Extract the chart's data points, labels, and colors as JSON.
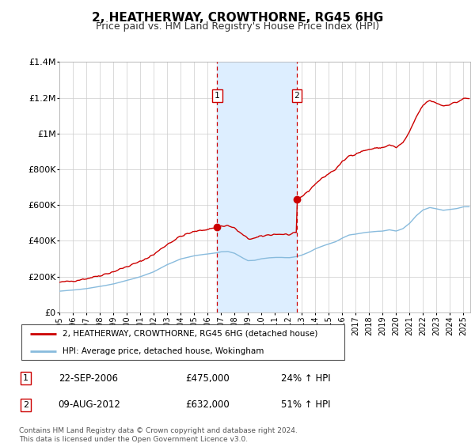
{
  "title": "2, HEATHERWAY, CROWTHORNE, RG45 6HG",
  "subtitle": "Price paid vs. HM Land Registry's House Price Index (HPI)",
  "title_fontsize": 11,
  "subtitle_fontsize": 9,
  "ylim": [
    0,
    1400000
  ],
  "yticks": [
    0,
    200000,
    400000,
    600000,
    800000,
    1000000,
    1200000,
    1400000
  ],
  "ytick_labels": [
    "£0",
    "£200K",
    "£400K",
    "£600K",
    "£800K",
    "£1M",
    "£1.2M",
    "£1.4M"
  ],
  "xlim_start": 1995.0,
  "xlim_end": 2025.5,
  "transaction1_x": 2006.72,
  "transaction1_y": 475000,
  "transaction1_label": "1",
  "transaction2_x": 2012.62,
  "transaction2_y": 632000,
  "transaction2_label": "2",
  "shade_color": "#ddeeff",
  "vline_color": "#cc0000",
  "red_line_color": "#cc0000",
  "blue_line_color": "#88bbdd",
  "legend_label_red": "2, HEATHERWAY, CROWTHORNE, RG45 6HG (detached house)",
  "legend_label_blue": "HPI: Average price, detached house, Wokingham",
  "table_entries": [
    {
      "num": "1",
      "date": "22-SEP-2006",
      "price": "£475,000",
      "hpi": "24% ↑ HPI"
    },
    {
      "num": "2",
      "date": "09-AUG-2012",
      "price": "£632,000",
      "hpi": "51% ↑ HPI"
    }
  ],
  "footer_text": "Contains HM Land Registry data © Crown copyright and database right 2024.\nThis data is licensed under the Open Government Licence v3.0."
}
